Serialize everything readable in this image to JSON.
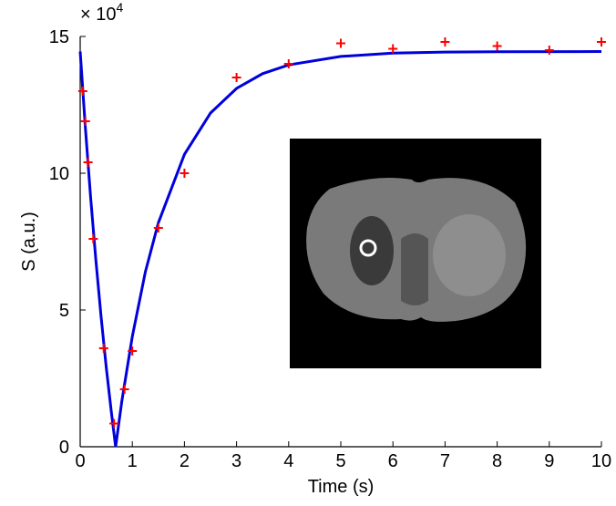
{
  "chart_data": {
    "type": "scatter",
    "x_label": "Time (s)",
    "y_label": "S (a.u.)",
    "y_multiplier": {
      "base": "× 10",
      "exponent": "4"
    },
    "xlim": [
      0,
      10
    ],
    "ylim": [
      0,
      15
    ],
    "xticks": [
      0,
      1,
      2,
      3,
      4,
      5,
      6,
      7,
      8,
      9,
      10
    ],
    "yticks": [
      0,
      5,
      10,
      15
    ],
    "grid": false,
    "series": [
      {
        "kind": "markers",
        "marker": "+",
        "color": "#ff0000",
        "x": [
          0.05,
          0.1,
          0.15,
          0.25,
          0.45,
          0.65,
          0.85,
          1,
          1.5,
          2,
          3,
          4,
          5,
          6,
          7,
          8,
          9,
          10
        ],
        "values": [
          13.0,
          11.9,
          10.4,
          7.6,
          3.6,
          0.85,
          2.1,
          3.5,
          8.0,
          10.0,
          13.5,
          14.0,
          14.75,
          14.55,
          14.8,
          14.65,
          14.5,
          14.8
        ]
      },
      {
        "kind": "line",
        "color": "#0000dd",
        "x": [
          0,
          0.1,
          0.2,
          0.3,
          0.4,
          0.5,
          0.6,
          0.68,
          0.8,
          1,
          1.25,
          1.5,
          2,
          2.5,
          3,
          3.5,
          4,
          5,
          6,
          7,
          8,
          10
        ],
        "values": [
          14.45,
          11.65,
          9.12,
          6.84,
          4.77,
          2.9,
          1.23,
          0,
          1.68,
          4.03,
          6.39,
          8.19,
          10.69,
          12.2,
          13.1,
          13.64,
          13.96,
          14.27,
          14.39,
          14.43,
          14.44,
          14.45
        ]
      }
    ]
  }
}
